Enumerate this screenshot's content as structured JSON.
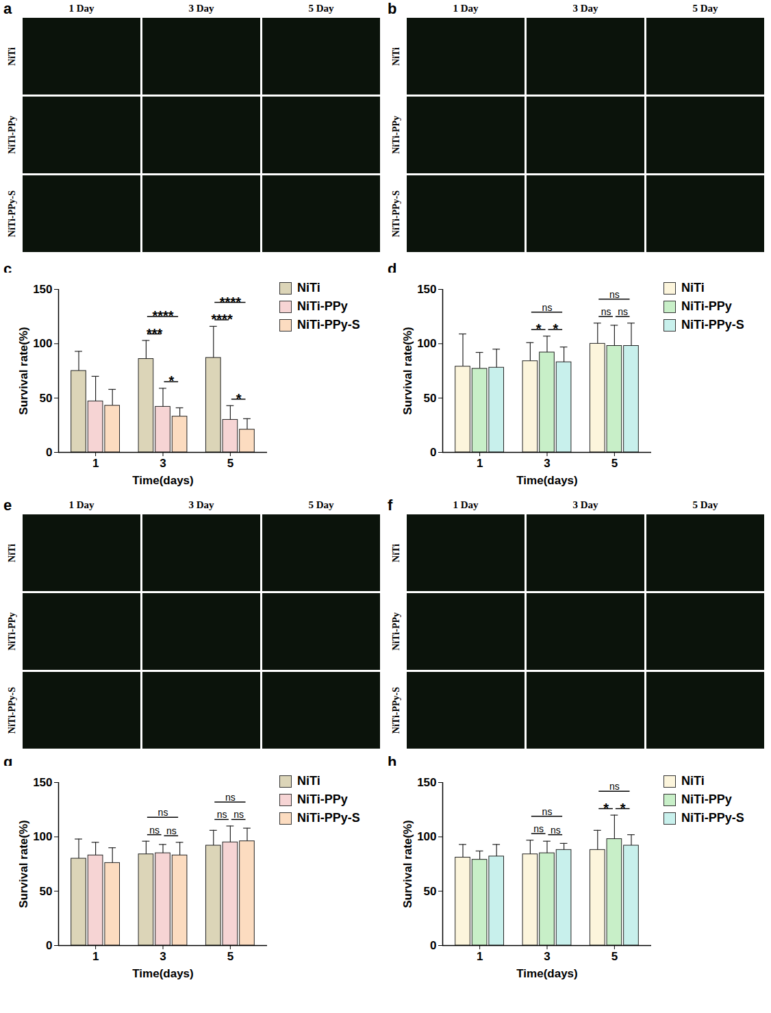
{
  "image_panels": [
    {
      "letter": "a",
      "columns": [
        "1 Day",
        "3 Day",
        "5 Day"
      ],
      "rows": [
        "NiTi",
        "NiTi-PPy",
        "NiTi-PPy-S"
      ]
    },
    {
      "letter": "b",
      "columns": [
        "1 Day",
        "3 Day",
        "5 Day"
      ],
      "rows": [
        "NiTi",
        "NiTi-PPy",
        "NiTi-PPy-S"
      ]
    },
    {
      "letter": "e",
      "columns": [
        "1 Day",
        "3 Day",
        "5 Day"
      ],
      "rows": [
        "NiTi",
        "NiTi-PPy",
        "NiTi-PPy-S"
      ]
    },
    {
      "letter": "f",
      "columns": [
        "1 Day",
        "3 Day",
        "5 Day"
      ],
      "rows": [
        "NiTi",
        "NiTi-PPy",
        "NiTi-PPy-S"
      ]
    }
  ],
  "chart_data": [
    {
      "letter": "c",
      "type": "bar",
      "x_label": "Time(days)",
      "y_label": "Survival rate(%)",
      "categories": [
        "1",
        "3",
        "5"
      ],
      "ylim": [
        0,
        150
      ],
      "yticks": [
        0,
        50,
        100,
        150
      ],
      "legend": "right",
      "series": [
        {
          "name": "NiTi",
          "color": "#dcd5b8",
          "values": [
            75,
            86,
            87
          ],
          "errors": [
            18,
            17,
            29
          ]
        },
        {
          "name": "NiTi-PPy",
          "color": "#f6d4d4",
          "values": [
            47,
            42,
            30
          ],
          "errors": [
            23,
            17,
            13
          ]
        },
        {
          "name": "NiTi-PPy-S",
          "color": "#fcdcc0",
          "values": [
            43,
            33,
            21
          ],
          "errors": [
            15,
            8,
            10
          ]
        }
      ],
      "significance": [
        {
          "category": "3",
          "groups": [
            "NiTi",
            "NiTi-PPy"
          ],
          "label": "***"
        },
        {
          "category": "3",
          "groups": [
            "NiTi-PPy",
            "NiTi-PPy-S"
          ],
          "label": "*"
        },
        {
          "category": "3",
          "groups": [
            "NiTi",
            "NiTi-PPy-S"
          ],
          "label": "****"
        },
        {
          "category": "5",
          "groups": [
            "NiTi",
            "NiTi-PPy"
          ],
          "label": "****"
        },
        {
          "category": "5",
          "groups": [
            "NiTi-PPy",
            "NiTi-PPy-S"
          ],
          "label": "*"
        },
        {
          "category": "5",
          "groups": [
            "NiTi",
            "NiTi-PPy-S"
          ],
          "label": "****"
        }
      ]
    },
    {
      "letter": "d",
      "type": "bar",
      "x_label": "Time(days)",
      "y_label": "Survival rate(%)",
      "categories": [
        "1",
        "3",
        "5"
      ],
      "ylim": [
        0,
        150
      ],
      "yticks": [
        0,
        50,
        100,
        150
      ],
      "legend": "right",
      "series": [
        {
          "name": "NiTi",
          "color": "#fcf5dc",
          "values": [
            79,
            84,
            100
          ],
          "errors": [
            30,
            17,
            19
          ]
        },
        {
          "name": "NiTi-PPy",
          "color": "#c8efc8",
          "values": [
            77,
            92,
            98
          ],
          "errors": [
            15,
            15,
            19
          ]
        },
        {
          "name": "NiTi-PPy-S",
          "color": "#c8f0ec",
          "values": [
            78,
            83,
            98
          ],
          "errors": [
            17,
            14,
            21
          ]
        }
      ],
      "significance": [
        {
          "category": "3",
          "groups": [
            "NiTi",
            "NiTi-PPy"
          ],
          "label": "*"
        },
        {
          "category": "3",
          "groups": [
            "NiTi-PPy",
            "NiTi-PPy-S"
          ],
          "label": "*"
        },
        {
          "category": "3",
          "groups": [
            "NiTi",
            "NiTi-PPy-S"
          ],
          "label": "ns"
        },
        {
          "category": "5",
          "groups": [
            "NiTi",
            "NiTi-PPy"
          ],
          "label": "ns"
        },
        {
          "category": "5",
          "groups": [
            "NiTi-PPy",
            "NiTi-PPy-S"
          ],
          "label": "ns"
        },
        {
          "category": "5",
          "groups": [
            "NiTi",
            "NiTi-PPy-S"
          ],
          "label": "ns"
        }
      ]
    },
    {
      "letter": "g",
      "type": "bar",
      "x_label": "Time(days)",
      "y_label": "Survival rate(%)",
      "categories": [
        "1",
        "3",
        "5"
      ],
      "ylim": [
        0,
        150
      ],
      "yticks": [
        0,
        50,
        100,
        150
      ],
      "legend": "right",
      "series": [
        {
          "name": "NiTi",
          "color": "#dcd5b8",
          "values": [
            80,
            84,
            92
          ],
          "errors": [
            18,
            12,
            14
          ]
        },
        {
          "name": "NiTi-PPy",
          "color": "#f6d4d4",
          "values": [
            83,
            85,
            95
          ],
          "errors": [
            12,
            8,
            15
          ]
        },
        {
          "name": "NiTi-PPy-S",
          "color": "#fcdcc0",
          "values": [
            76,
            83,
            96
          ],
          "errors": [
            14,
            12,
            12
          ]
        }
      ],
      "significance": [
        {
          "category": "3",
          "groups": [
            "NiTi",
            "NiTi-PPy"
          ],
          "label": "ns"
        },
        {
          "category": "3",
          "groups": [
            "NiTi-PPy",
            "NiTi-PPy-S"
          ],
          "label": "ns"
        },
        {
          "category": "3",
          "groups": [
            "NiTi",
            "NiTi-PPy-S"
          ],
          "label": "ns"
        },
        {
          "category": "5",
          "groups": [
            "NiTi",
            "NiTi-PPy"
          ],
          "label": "ns"
        },
        {
          "category": "5",
          "groups": [
            "NiTi-PPy",
            "NiTi-PPy-S"
          ],
          "label": "ns"
        },
        {
          "category": "5",
          "groups": [
            "NiTi",
            "NiTi-PPy-S"
          ],
          "label": "ns"
        }
      ]
    },
    {
      "letter": "h",
      "type": "bar",
      "x_label": "Time(days)",
      "y_label": "Survival rate(%)",
      "categories": [
        "1",
        "3",
        "5"
      ],
      "ylim": [
        0,
        150
      ],
      "yticks": [
        0,
        50,
        100,
        150
      ],
      "legend": "right",
      "series": [
        {
          "name": "NiTi",
          "color": "#fcf5dc",
          "values": [
            81,
            84,
            88
          ],
          "errors": [
            12,
            13,
            18
          ]
        },
        {
          "name": "NiTi-PPy",
          "color": "#c8efc8",
          "values": [
            79,
            85,
            98
          ],
          "errors": [
            8,
            11,
            22
          ]
        },
        {
          "name": "NiTi-PPy-S",
          "color": "#c8f0ec",
          "values": [
            82,
            88,
            92
          ],
          "errors": [
            11,
            6,
            10
          ]
        }
      ],
      "significance": [
        {
          "category": "3",
          "groups": [
            "NiTi",
            "NiTi-PPy"
          ],
          "label": "ns"
        },
        {
          "category": "3",
          "groups": [
            "NiTi-PPy",
            "NiTi-PPy-S"
          ],
          "label": "ns"
        },
        {
          "category": "3",
          "groups": [
            "NiTi",
            "NiTi-PPy-S"
          ],
          "label": "ns"
        },
        {
          "category": "5",
          "groups": [
            "NiTi",
            "NiTi-PPy"
          ],
          "label": "*"
        },
        {
          "category": "5",
          "groups": [
            "NiTi-PPy",
            "NiTi-PPy-S"
          ],
          "label": "*"
        },
        {
          "category": "5",
          "groups": [
            "NiTi",
            "NiTi-PPy-S"
          ],
          "label": "ns"
        }
      ]
    }
  ]
}
